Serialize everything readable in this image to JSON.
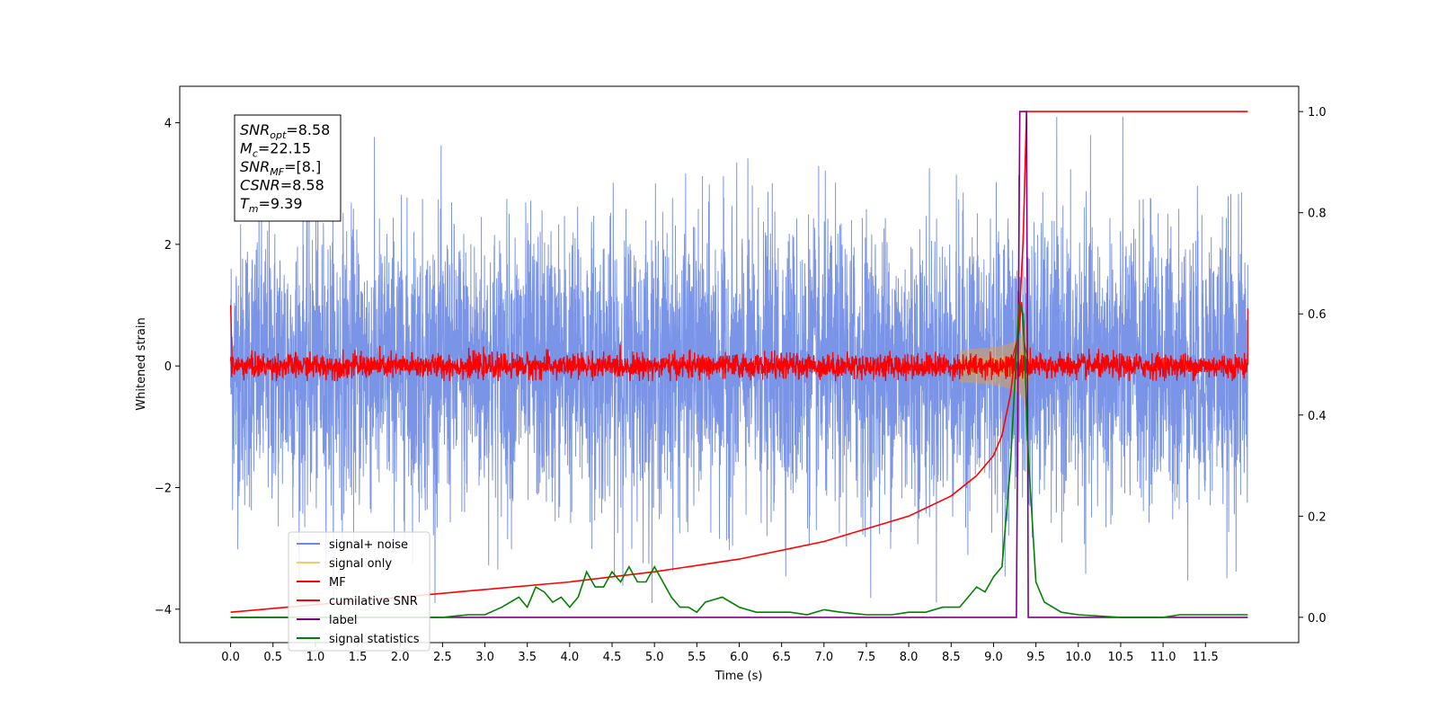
{
  "chart_data": {
    "type": "line",
    "xlabel": "Time (s)",
    "ylabel_left": "Whitened strain",
    "ylabel_right": "",
    "xlim": [
      -0.6,
      12.6
    ],
    "ylim_left": [
      -4.55,
      4.6
    ],
    "ylim_right": [
      -0.05,
      1.05
    ],
    "grid": false,
    "legend_position": "lower-left",
    "x_ticks": [
      "0.0",
      "0.5",
      "1.0",
      "1.5",
      "2.0",
      "2.5",
      "3.0",
      "3.5",
      "4.0",
      "4.5",
      "5.0",
      "5.5",
      "6.0",
      "6.5",
      "7.0",
      "7.5",
      "8.0",
      "8.5",
      "9.0",
      "9.5",
      "10.0",
      "10.5",
      "11.0",
      "11.5"
    ],
    "y_ticks_left": [
      "-4",
      "-2",
      "0",
      "2",
      "4"
    ],
    "y_ticks_right": [
      "0.0",
      "0.2",
      "0.4",
      "0.6",
      "0.8",
      "1.0"
    ],
    "info_box": {
      "lines": [
        {
          "main": "SNR",
          "sub": "opt",
          "value": "=8.58"
        },
        {
          "main": "M",
          "sub": "c",
          "value": "=22.15"
        },
        {
          "main": "SNR",
          "sub": "MF",
          "value": "=[8.]"
        },
        {
          "main": "CSNR",
          "sub": "",
          "value": "=8.58"
        },
        {
          "main": "T",
          "sub": "m",
          "value": "=9.39"
        }
      ]
    },
    "series": [
      {
        "name": "signal+ noise",
        "color": "#6b88e6",
        "axis": "left",
        "kind": "noise",
        "x_range": [
          0,
          12
        ],
        "amplitude_std": 1.0
      },
      {
        "name": "signal only",
        "color": "#f5c96b",
        "axis": "left",
        "kind": "chirp",
        "merger_time": 9.39
      },
      {
        "name": "MF",
        "color": "#ff0000",
        "axis": "left",
        "kind": "noise",
        "x_range": [
          0,
          12
        ],
        "amplitude_std": 0.1
      },
      {
        "name": "cumilative SNR",
        "color": "#ff0000",
        "axis": "right",
        "x": [
          0.0,
          1.0,
          2.0,
          3.0,
          4.0,
          5.0,
          6.0,
          7.0,
          7.5,
          8.0,
          8.5,
          8.8,
          9.0,
          9.1,
          9.2,
          9.3,
          9.35,
          9.39,
          12.0
        ],
        "values": [
          0.01,
          0.025,
          0.04,
          0.055,
          0.07,
          0.09,
          0.115,
          0.15,
          0.175,
          0.2,
          0.24,
          0.28,
          0.32,
          0.36,
          0.44,
          0.58,
          0.75,
          1.0,
          1.0
        ]
      },
      {
        "name": "label",
        "color": "#800080",
        "axis": "right",
        "x": [
          0.0,
          9.27,
          9.31,
          9.39,
          9.41,
          12.0
        ],
        "values": [
          0.0,
          0.0,
          1.0,
          1.0,
          0.0,
          0.0
        ]
      },
      {
        "name": "signal statistics",
        "color": "#008000",
        "axis": "right",
        "x": [
          0.0,
          1.0,
          2.0,
          2.5,
          2.8,
          3.0,
          3.2,
          3.4,
          3.5,
          3.6,
          3.7,
          3.8,
          3.9,
          4.0,
          4.1,
          4.2,
          4.3,
          4.4,
          4.5,
          4.6,
          4.7,
          4.8,
          4.9,
          5.0,
          5.1,
          5.2,
          5.3,
          5.4,
          5.5,
          5.6,
          5.8,
          6.0,
          6.2,
          6.4,
          6.6,
          6.8,
          7.0,
          7.2,
          7.5,
          7.8,
          8.0,
          8.2,
          8.4,
          8.6,
          8.8,
          8.9,
          9.0,
          9.1,
          9.2,
          9.3,
          9.35,
          9.4,
          9.5,
          9.6,
          9.8,
          10.0,
          10.5,
          11.0,
          11.2,
          11.5,
          12.0
        ],
        "values": [
          0.0,
          0.0,
          0.0,
          0.0,
          0.005,
          0.005,
          0.02,
          0.04,
          0.02,
          0.06,
          0.05,
          0.03,
          0.04,
          0.02,
          0.04,
          0.09,
          0.06,
          0.06,
          0.09,
          0.07,
          0.1,
          0.07,
          0.07,
          0.1,
          0.07,
          0.04,
          0.02,
          0.02,
          0.01,
          0.03,
          0.04,
          0.02,
          0.01,
          0.01,
          0.01,
          0.005,
          0.015,
          0.01,
          0.005,
          0.005,
          0.01,
          0.01,
          0.02,
          0.02,
          0.06,
          0.05,
          0.08,
          0.1,
          0.3,
          0.62,
          0.6,
          0.35,
          0.07,
          0.03,
          0.01,
          0.005,
          0.0,
          0.0,
          0.005,
          0.005,
          0.005
        ]
      }
    ]
  }
}
